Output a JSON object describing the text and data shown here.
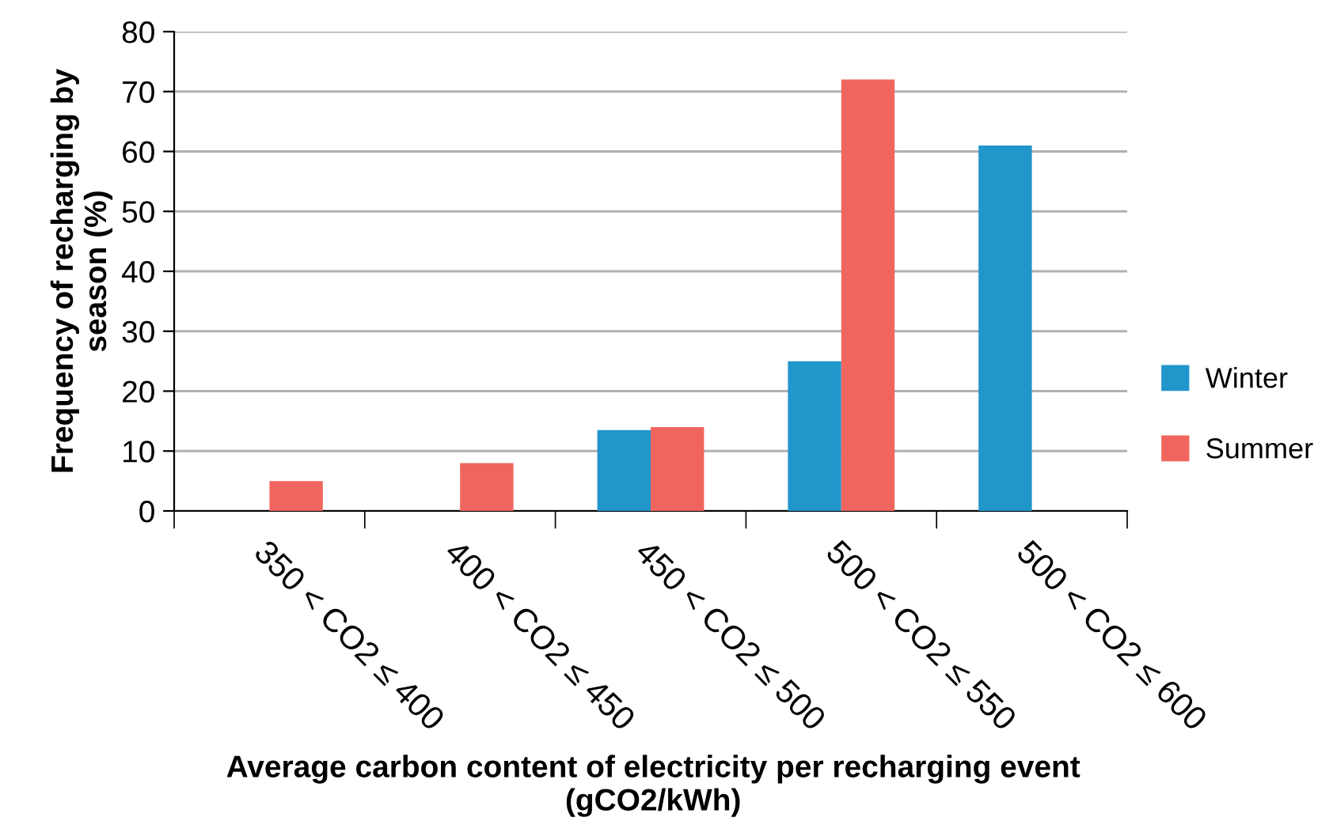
{
  "chart_data": {
    "type": "bar",
    "xlabel": "Average carbon content of electricity per recharging event\n(gCO2/kWh)",
    "ylabel": "Frequency of recharging by\nseason (%)",
    "categories": [
      "350 < CO2 ≤ 400",
      "400 < CO2 ≤ 450",
      "450 < CO2 ≤ 500",
      "500 < CO2 ≤ 550",
      "500 < CO2 ≤ 600"
    ],
    "series": [
      {
        "name": "Winter",
        "color": "#2196cb",
        "values": [
          null,
          null,
          13.5,
          25,
          61
        ]
      },
      {
        "name": "Summer",
        "color": "#f0665e",
        "values": [
          5,
          8,
          14,
          72,
          null
        ]
      }
    ],
    "ylim": [
      0,
      80
    ],
    "yticks": [
      0,
      10,
      20,
      30,
      40,
      50,
      60,
      70,
      80
    ],
    "grid": "y",
    "legend": "right"
  }
}
